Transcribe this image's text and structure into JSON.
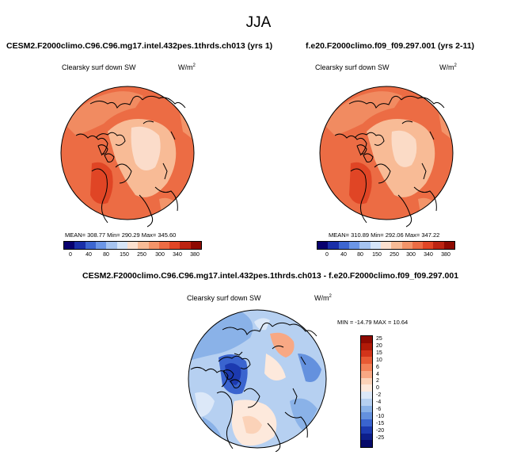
{
  "title": "JJA",
  "panels": [
    {
      "case_label": "CESM2.F2000climo.C96.C96.mg17.intel.432pes.1thrds.ch013 (yrs 1)",
      "variable": "Clearsky surf down SW",
      "units_base": "W/m",
      "units_exp": "2",
      "stats": "MEAN= 308.77  Min= 290.29  Max= 345.60",
      "colorbar_ticks": [
        "0",
        "40",
        "80",
        "150",
        "250",
        "300",
        "340",
        "380"
      ]
    },
    {
      "case_label": "f.e20.F2000climo.f09_f09.297.001 (yrs 2-11)",
      "variable": "Clearsky surf down SW",
      "units_base": "W/m",
      "units_exp": "2",
      "stats": "MEAN= 310.89  Min= 292.06  Max= 347.22",
      "colorbar_ticks": [
        "0",
        "40",
        "80",
        "150",
        "250",
        "300",
        "340",
        "380"
      ]
    },
    {
      "case_label": "CESM2.F2000climo.C96.C96.mg17.intel.432pes.1thrds.ch013 - f.e20.F2000climo.f09_f09.297.001",
      "variable": "Clearsky surf down SW",
      "units_base": "W/m",
      "units_exp": "2",
      "stats": "MIN = -14.79 MAX = 10.64",
      "colorbar_ticks": [
        "25",
        "20",
        "15",
        "10",
        "6",
        "4",
        "2",
        "0",
        "-2",
        "-4",
        "-6",
        "-10",
        "-15",
        "-20",
        "-25"
      ]
    }
  ],
  "colors": {
    "abs_scale": [
      "#08006e",
      "#1a2fa8",
      "#3d66d0",
      "#6c96e6",
      "#a6c4f0",
      "#d6e5f8",
      "#fbe0cf",
      "#f8bb96",
      "#f39469",
      "#ec6c44",
      "#e04525",
      "#bc2412",
      "#8e0a02"
    ],
    "diff_scale": [
      "#8e0a02",
      "#b11a08",
      "#d2341a",
      "#e85a34",
      "#f38158",
      "#f8a884",
      "#fbd2b8",
      "#fde9dc",
      "#dce8f8",
      "#b6d0f1",
      "#8ab2e8",
      "#6491de",
      "#3a64cf",
      "#1c3ab0",
      "#0d1e8a",
      "#060a6a"
    ]
  }
}
